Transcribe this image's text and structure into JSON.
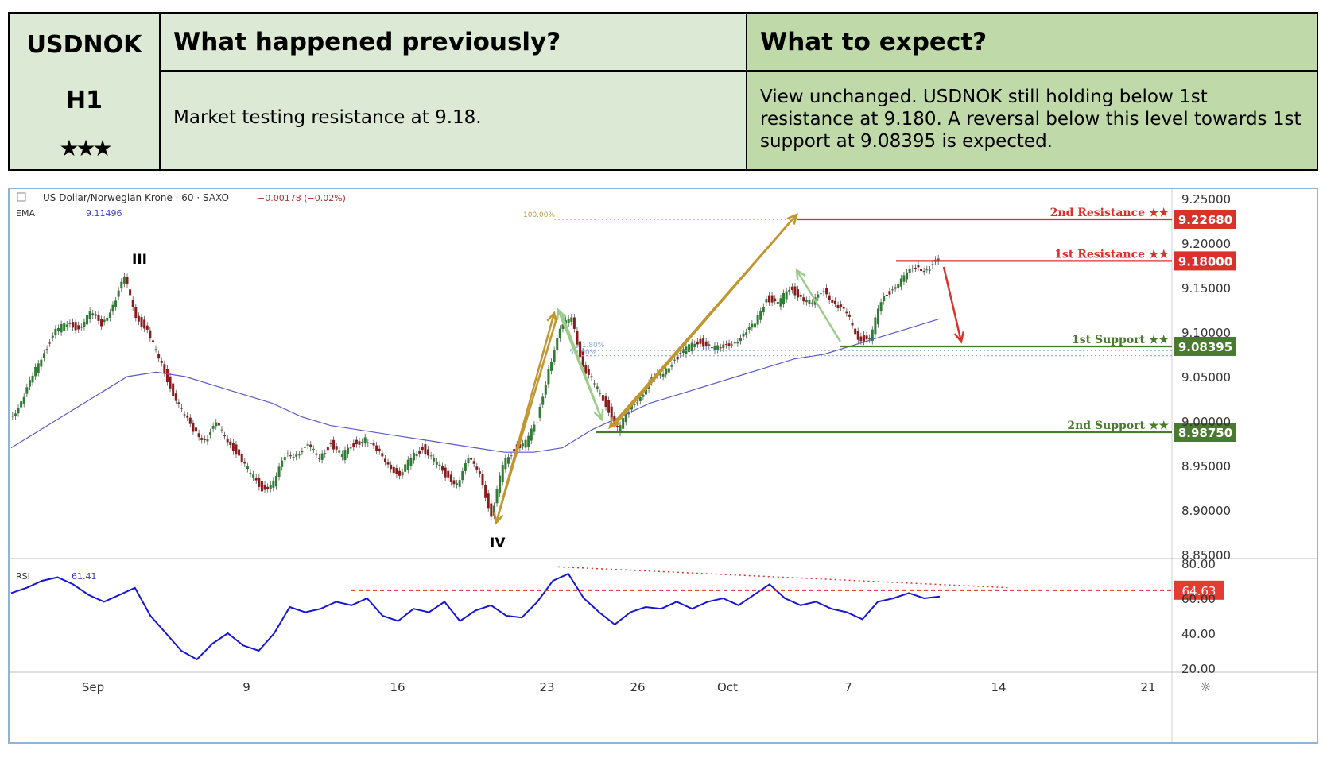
{
  "header": {
    "symbol": "USDNOK",
    "timeframe": "H1",
    "stars": "★★★",
    "prev_title": "What happened previously?",
    "prev_text": "Market testing resistance at 9.18.",
    "expect_title": "What to expect?",
    "expect_text": "View unchanged. USDNOK still holding below 1st resistance at 9.180. A reversal below this level towards 1st support at 9.08395 is expected."
  },
  "chart_toolbar": {
    "instrument": "US Dollar/Norwegian Krone · 60 · SAXO",
    "change": "−0.00178 (−0.02%)",
    "ema_label": "EMA",
    "ema_value": "9.11496",
    "rsi_label": "RSI",
    "rsi_value": "61.41"
  },
  "chart_data": {
    "type": "line",
    "price_axis": {
      "ylim": [
        8.85,
        9.25
      ],
      "ticks": [
        "9.25000",
        "9.20000",
        "9.15000",
        "9.10000",
        "9.05000",
        "9.00000",
        "8.95000",
        "8.90000",
        "8.85000"
      ]
    },
    "rsi_axis": {
      "ylim": [
        20,
        80
      ],
      "ticks": [
        "80.00",
        "60.00",
        "40.00",
        "20.00"
      ]
    },
    "x_ticks": [
      "Sep",
      "9",
      "16",
      "23",
      "26",
      "Oct",
      "7",
      "14",
      "21"
    ],
    "levels": [
      {
        "name": "2nd Resistance ★★",
        "value": 9.2268,
        "label": "9.22680",
        "color": "#d9322d"
      },
      {
        "name": "1st Resistance ★★",
        "value": 9.18,
        "label": "9.18000",
        "color": "#d9322d"
      },
      {
        "name": "1st Support ★★",
        "value": 9.08395,
        "label": "9.08395",
        "color": "#4a7a2f"
      },
      {
        "name": "2nd Support ★★",
        "value": 8.9875,
        "label": "8.98750",
        "color": "#4a7a2f"
      }
    ],
    "rsi_level": {
      "value": 64.63,
      "label": "64.63"
    },
    "wave_labels": [
      "III",
      "IV"
    ],
    "fib_labels": [
      "100.00%",
      "61.80%",
      "50.00%"
    ],
    "price_series": [
      9.005,
      9.02,
      9.05,
      9.08,
      9.1,
      9.11,
      9.105,
      9.12,
      9.11,
      9.13,
      9.16,
      9.12,
      9.1,
      9.07,
      9.04,
      9.01,
      8.99,
      8.98,
      8.995,
      8.98,
      8.96,
      8.94,
      8.925,
      8.93,
      8.96,
      8.965,
      8.97,
      8.96,
      8.975,
      8.96,
      8.975,
      8.98,
      8.965,
      8.955,
      8.935,
      8.96,
      8.97,
      8.955,
      8.94,
      8.93,
      8.955,
      8.945,
      8.89,
      8.95,
      8.97,
      8.975,
      9.0,
      9.06,
      9.1,
      9.12,
      9.06,
      9.04,
      9.02,
      8.99,
      9.01,
      9.03,
      9.045,
      9.055,
      9.07,
      9.08,
      9.09,
      9.085,
      9.08,
      9.09,
      9.095,
      9.11,
      9.14,
      9.13,
      9.15,
      9.14,
      9.13,
      9.15,
      9.13,
      9.12,
      9.095,
      9.09,
      9.135,
      9.15,
      9.16,
      9.175,
      9.17,
      9.18
    ],
    "ema_series": [
      8.97,
      8.99,
      9.01,
      9.03,
      9.05,
      9.055,
      9.05,
      9.04,
      9.03,
      9.02,
      9.005,
      8.995,
      8.99,
      8.985,
      8.98,
      8.975,
      8.97,
      8.965,
      8.965,
      8.97,
      8.99,
      9.005,
      9.02,
      9.03,
      9.04,
      9.05,
      9.06,
      9.07,
      9.075,
      9.085,
      9.095,
      9.105,
      9.115
    ],
    "rsi_series": [
      63,
      66,
      70,
      72,
      68,
      62,
      58,
      62,
      66,
      50,
      40,
      30,
      25,
      34,
      40,
      33,
      30,
      40,
      55,
      52,
      54,
      58,
      56,
      60,
      50,
      47,
      54,
      52,
      58,
      47,
      53,
      56,
      50,
      49,
      58,
      70,
      74,
      60,
      52,
      45,
      52,
      55,
      54,
      58,
      54,
      58,
      60,
      56,
      62,
      68,
      60,
      56,
      58,
      54,
      52,
      48,
      58,
      60,
      63,
      60,
      61
    ]
  }
}
